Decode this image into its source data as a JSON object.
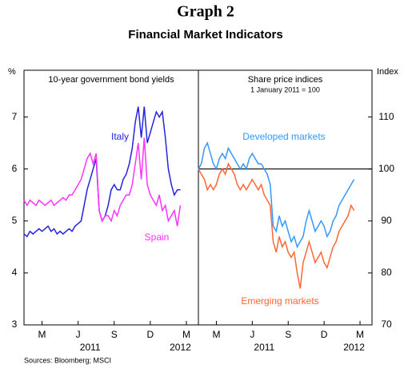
{
  "title": "Graph 2",
  "subtitle": "Financial Market Indicators",
  "source": "Sources: Bloomberg; MSCI",
  "chart_data": [
    {
      "type": "line",
      "title": "10-year government bond yields",
      "ylabel": "%",
      "yaxis_side": "left",
      "x": [
        1.0,
        1.25,
        1.5,
        1.75,
        2.0,
        2.25,
        2.5,
        2.75,
        3.0,
        3.25,
        3.5,
        3.75,
        4.0,
        4.25,
        4.5,
        4.75,
        5.0,
        5.25,
        5.5,
        5.75,
        6.0,
        6.25,
        6.5,
        6.75,
        7.0,
        7.25,
        7.5,
        7.75,
        8.0,
        8.25,
        8.5,
        8.75,
        9.0,
        9.25,
        9.5,
        9.75,
        10.0,
        10.25,
        10.5,
        10.75,
        11.0,
        11.25,
        11.5,
        11.75,
        12.0,
        12.25,
        12.5,
        12.75,
        13.0,
        13.25,
        13.5,
        13.75,
        14.0
      ],
      "xlim": [
        1,
        15.5
      ],
      "xticks": [
        {
          "value": 2.5,
          "label": "M"
        },
        {
          "value": 5.5,
          "label": "J"
        },
        {
          "value": 8.5,
          "label": "S"
        },
        {
          "value": 11.5,
          "label": "D"
        },
        {
          "value": 14.5,
          "label": "M"
        }
      ],
      "xgroups": [
        {
          "value": 6.5,
          "label": "2011"
        },
        {
          "value": 14,
          "label": "2012"
        }
      ],
      "ylim": [
        3,
        7.9
      ],
      "yticks": [
        3,
        4,
        5,
        6,
        7
      ],
      "series": [
        {
          "name": "Italy",
          "color": "#2424e0",
          "values": [
            4.75,
            4.7,
            4.8,
            4.75,
            4.8,
            4.85,
            4.8,
            4.85,
            4.9,
            4.8,
            4.85,
            4.75,
            4.8,
            4.75,
            4.8,
            4.85,
            4.8,
            4.9,
            4.95,
            5.0,
            5.3,
            5.6,
            5.8,
            6.0,
            6.2,
            5.2,
            5.0,
            5.1,
            5.3,
            5.6,
            5.7,
            5.6,
            5.6,
            5.8,
            5.9,
            6.1,
            6.4,
            6.9,
            7.2,
            6.6,
            7.2,
            6.5,
            6.7,
            6.9,
            7.1,
            7.0,
            7.1,
            6.6,
            6.0,
            5.7,
            5.5,
            5.6,
            5.6
          ]
        },
        {
          "name": "Spain",
          "color": "#ff33ff",
          "values": [
            5.4,
            5.3,
            5.4,
            5.35,
            5.3,
            5.4,
            5.35,
            5.3,
            5.35,
            5.4,
            5.3,
            5.35,
            5.4,
            5.45,
            5.4,
            5.5,
            5.5,
            5.6,
            5.7,
            5.8,
            6.0,
            6.2,
            6.3,
            6.1,
            6.3,
            5.2,
            5.0,
            5.1,
            5.1,
            5.0,
            5.2,
            5.1,
            5.3,
            5.4,
            5.5,
            5.5,
            5.7,
            6.1,
            6.5,
            5.8,
            6.6,
            5.7,
            5.5,
            5.4,
            5.3,
            5.5,
            5.2,
            5.3,
            5.0,
            5.1,
            5.2,
            4.9,
            5.3
          ]
        }
      ]
    },
    {
      "type": "line",
      "title": "Share price indices",
      "subtitle": "1 January 2011 = 100",
      "ylabel": "Index",
      "yaxis_side": "right",
      "reference_line": 100,
      "x": [
        1.0,
        1.25,
        1.5,
        1.75,
        2.0,
        2.25,
        2.5,
        2.75,
        3.0,
        3.25,
        3.5,
        3.75,
        4.0,
        4.25,
        4.5,
        4.75,
        5.0,
        5.25,
        5.5,
        5.75,
        6.0,
        6.25,
        6.5,
        6.75,
        7.0,
        7.25,
        7.5,
        7.75,
        8.0,
        8.25,
        8.5,
        8.75,
        9.0,
        9.25,
        9.5,
        9.75,
        10.0,
        10.25,
        10.5,
        10.75,
        11.0,
        11.25,
        11.5,
        11.75,
        12.0,
        12.25,
        12.5,
        12.75,
        13.0,
        13.25,
        13.5,
        13.75,
        14.0
      ],
      "xlim": [
        1,
        15.5
      ],
      "xticks": [
        {
          "value": 2.5,
          "label": "M"
        },
        {
          "value": 5.5,
          "label": "J"
        },
        {
          "value": 8.5,
          "label": "S"
        },
        {
          "value": 11.5,
          "label": "D"
        },
        {
          "value": 14.5,
          "label": "M"
        }
      ],
      "xgroups": [
        {
          "value": 6.5,
          "label": "2011"
        },
        {
          "value": 14,
          "label": "2012"
        }
      ],
      "ylim": [
        70,
        119
      ],
      "yticks": [
        70,
        80,
        90,
        100,
        110
      ],
      "series": [
        {
          "name": "Developed markets",
          "color": "#3399ff",
          "values": [
            100,
            101,
            104,
            105,
            103,
            101,
            100,
            102,
            103,
            102,
            104,
            103,
            102,
            101,
            100,
            101,
            100,
            102,
            103,
            102,
            101,
            101,
            100,
            99,
            97,
            89,
            88,
            91,
            89,
            90,
            88,
            86,
            87,
            85,
            86,
            87,
            90,
            92,
            90,
            88,
            89,
            90,
            89,
            87,
            88,
            90,
            91,
            93,
            94,
            95,
            96,
            97,
            98
          ]
        },
        {
          "name": "Emerging markets",
          "color": "#ff6633",
          "values": [
            100,
            99,
            98,
            96,
            97,
            96,
            97,
            99,
            100,
            99,
            101,
            100,
            99,
            97,
            96,
            97,
            96,
            97,
            98,
            97,
            96,
            97,
            95,
            94,
            93,
            86,
            84,
            87,
            85,
            86,
            84,
            83,
            84,
            80,
            77,
            82,
            84,
            86,
            84,
            82,
            83,
            84,
            82,
            81,
            83,
            85,
            86,
            88,
            89,
            90,
            91,
            93,
            92
          ]
        }
      ]
    }
  ]
}
